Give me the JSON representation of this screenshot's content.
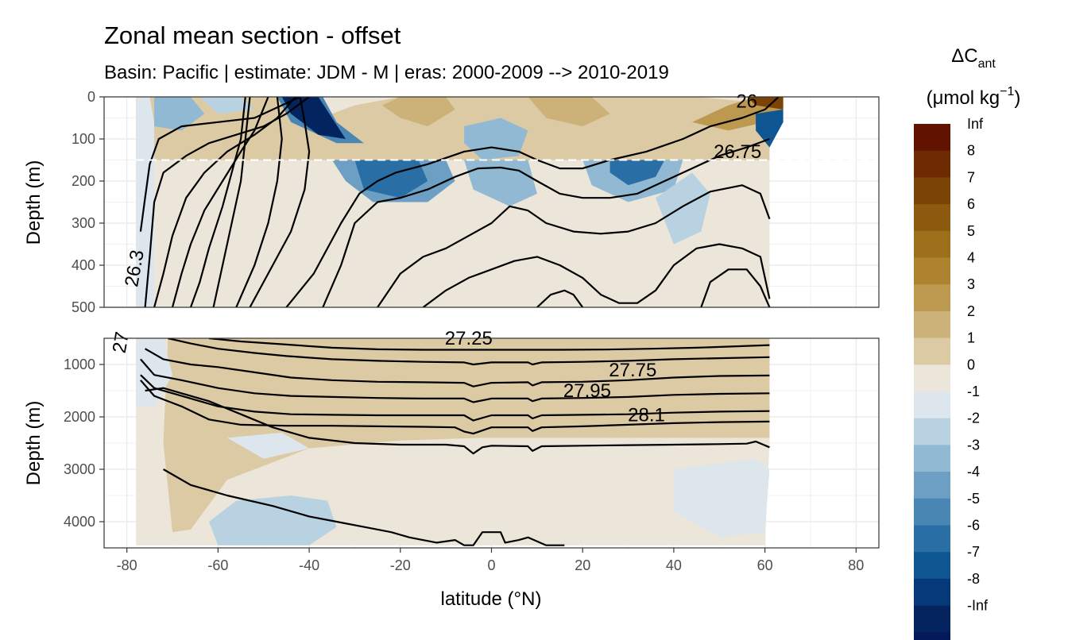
{
  "chart_data": {
    "type": "contour",
    "title": "Zonal mean section - offset",
    "subtitle": "Basin: Pacific | estimate: JDM - M | eras: 2000-2009 --> 2010-2019",
    "xlabel": "latitude (°N)",
    "x_ticks": [
      -80,
      -60,
      -40,
      -20,
      0,
      20,
      40,
      60,
      80
    ],
    "x_tick_labels": [
      "-80",
      "-60",
      "-40",
      "-20",
      "0",
      "20",
      "40",
      "60",
      "80"
    ],
    "xlim": [
      -85,
      85
    ],
    "panels": [
      {
        "name": "upper",
        "ylabel": "Depth (m)",
        "ylim": [
          0,
          500
        ],
        "y_ticks": [
          0,
          100,
          200,
          300,
          400,
          500
        ],
        "y_tick_labels": [
          "0",
          "100",
          "200",
          "300",
          "400",
          "500"
        ],
        "reference_line_depth": 150,
        "contour_labels": [
          {
            "text": "26",
            "lat": 56,
            "depth": 25
          },
          {
            "text": "26.75",
            "lat": 54,
            "depth": 145
          },
          {
            "text": "26.3",
            "lat": -77,
            "depth": 410
          }
        ]
      },
      {
        "name": "lower",
        "ylabel": "Depth (m)",
        "ylim": [
          500,
          4500
        ],
        "y_ticks": [
          1000,
          2000,
          3000,
          4000
        ],
        "y_tick_labels": [
          "1000",
          "2000",
          "3000",
          "4000"
        ],
        "contour_labels": [
          {
            "text": "27.25",
            "lat": -5,
            "depth": 620
          },
          {
            "text": "27.75",
            "lat": 31,
            "depth": 1230
          },
          {
            "text": "27.95",
            "lat": 21,
            "depth": 1620
          },
          {
            "text": "28.1",
            "lat": 34,
            "depth": 2080
          },
          {
            "text": "27",
            "lat": -80,
            "depth": 600
          }
        ]
      }
    ],
    "legend": {
      "title_main": "ΔC",
      "title_sub": "ant",
      "unit_main": "(μmol kg",
      "unit_sup": "−1",
      "unit_end": ")",
      "labels": [
        "Inf",
        "8",
        "7",
        "6",
        "5",
        "4",
        "3",
        "2",
        "1",
        "0",
        "-1",
        "-2",
        "-3",
        "-4",
        "-5",
        "-6",
        "-7",
        "-8",
        "-Inf"
      ],
      "colors": [
        "#611300",
        "#6e2a03",
        "#7c4307",
        "#8c5a0e",
        "#9d6f1b",
        "#ad832f",
        "#bd994f",
        "#ccb179",
        "#dccaa5",
        "#ece6da",
        "#dce6ec",
        "#b9d2e1",
        "#91b9d3",
        "#6c9fc3",
        "#4a86b4",
        "#296ea5",
        "#0e5692",
        "#06397a",
        "#03245f",
        "#03195a"
      ]
    }
  }
}
